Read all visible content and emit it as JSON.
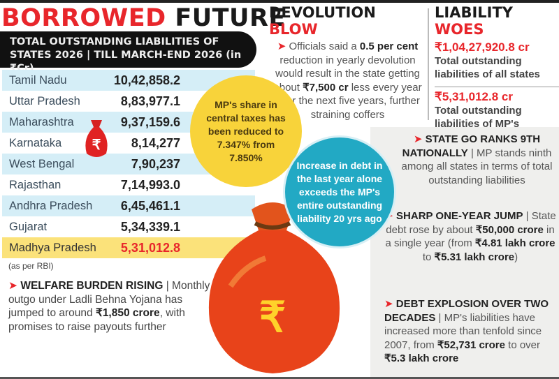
{
  "title": {
    "part1": "BORROWED",
    "part2": "FUTURE"
  },
  "table": {
    "header_line1": "TOTAL OUTSTANDING LIABILITIES OF",
    "header_line2": "STATES 2026 | TILL MARCH-END 2026 (in ₹Cr)",
    "rows": [
      {
        "state": "Tamil Nadu",
        "value": "10,42,858.2"
      },
      {
        "state": "Uttar Pradesh",
        "value": "8,83,977.1"
      },
      {
        "state": "Maharashtra",
        "value": "9,37,159.6"
      },
      {
        "state": "Karnataka",
        "value": "8,14,277"
      },
      {
        "state": "West Bengal",
        "value": "7,90,237"
      },
      {
        "state": "Rajasthan",
        "value": "7,14,993.0"
      },
      {
        "state": "Andhra Pradesh",
        "value": "6,45,461.1"
      },
      {
        "state": "Gujarat",
        "value": "5,34,339.1"
      },
      {
        "state": "Madhya Pradesh",
        "value": "5,31,012.8"
      }
    ],
    "note": "(as per RBI)"
  },
  "welfare": {
    "head": "WELFARE BURDEN RISING",
    "sep": " | ",
    "text": "Monthly outgo under Ladli Behna Yojana has jumped to around ",
    "bold": "₹1,850 crore",
    "text2": ", with promises to raise payouts further"
  },
  "yellow_circle": "MP's share in central taxes has been reduced to 7.347% from 7.850%",
  "teal_circle": "Increase in debt in the last year alone exceeds the MP's entire outstanding liability 20 yrs ago",
  "devolution": {
    "title1": "DEVOLUTION ",
    "title2": "BLOW",
    "t1": "Officials said a ",
    "b1": "0.5 per cent",
    "t2": " reduction in yearly devolution would result in the state getting about ",
    "b2": "₹7,500 cr",
    "t3": " less every year over the next five years, further straining coffers"
  },
  "liability": {
    "title1": "LIABILITY ",
    "title2": "WOES",
    "amt1": "₹1,04,27,920.8 cr",
    "desc1": "Total outstanding liabilities of all states",
    "amt2": "₹5,31,012.8 cr",
    "desc2": "Total outstanding liabilities of MP's"
  },
  "points": [
    {
      "head": "STATE GO RANKS 9TH NATIONALLY",
      "text": "MP stands ninth among all states in terms of total outstanding liabilities"
    },
    {
      "head": "SHARP ONE-YEAR JUMP",
      "t1": "State debt rose by about ",
      "b1": "₹50,000 crore",
      "t2": " in a single year (from ",
      "b2": "₹4.81 lakh crore",
      "t3": " to ",
      "b3": "₹5.31 lakh crore",
      "t4": ")"
    },
    {
      "head": "DEBT EXPLOSION OVER TWO DECADES",
      "t1": "MP's liabilities have increased more than tenfold since 2007, from ",
      "b1": "₹52,731 crore",
      "t2": " to over ",
      "b2": "₹5.3 lakh crore"
    }
  ],
  "sep": " | ",
  "arrow": "➤",
  "rupee": "₹",
  "colors": {
    "accent": "#e8262b",
    "table_alt": "#d5eef7",
    "highlight": "#fbe27a",
    "yellow": "#f8d33a",
    "teal": "#22a9c4"
  }
}
